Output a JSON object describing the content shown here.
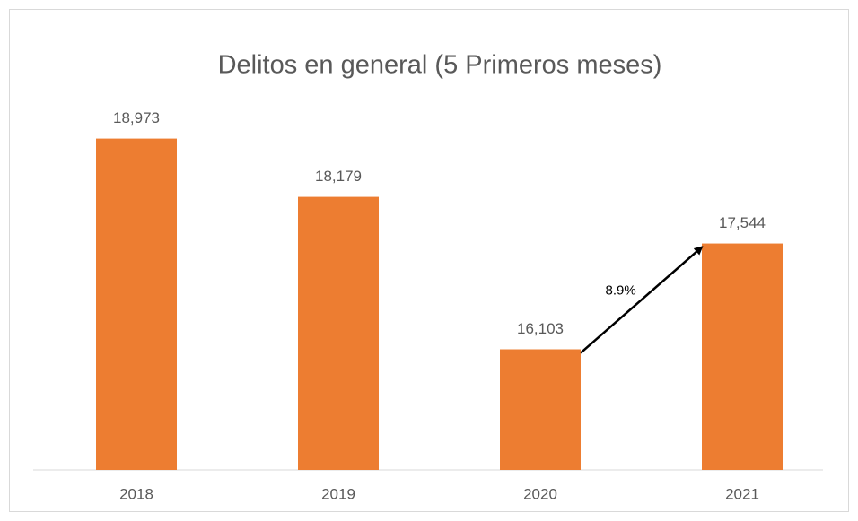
{
  "chart_data": {
    "type": "bar",
    "title": "Delitos en general (5 Primeros meses)",
    "categories": [
      "2018",
      "2019",
      "2020",
      "2021"
    ],
    "values": [
      18973,
      18179,
      16103,
      17544
    ],
    "value_labels": [
      "18,973",
      "18,179",
      "16,103",
      "17,544"
    ],
    "color": "#ed7d31",
    "ylim": [
      14460,
      19640
    ],
    "annotation": "8.9%"
  }
}
